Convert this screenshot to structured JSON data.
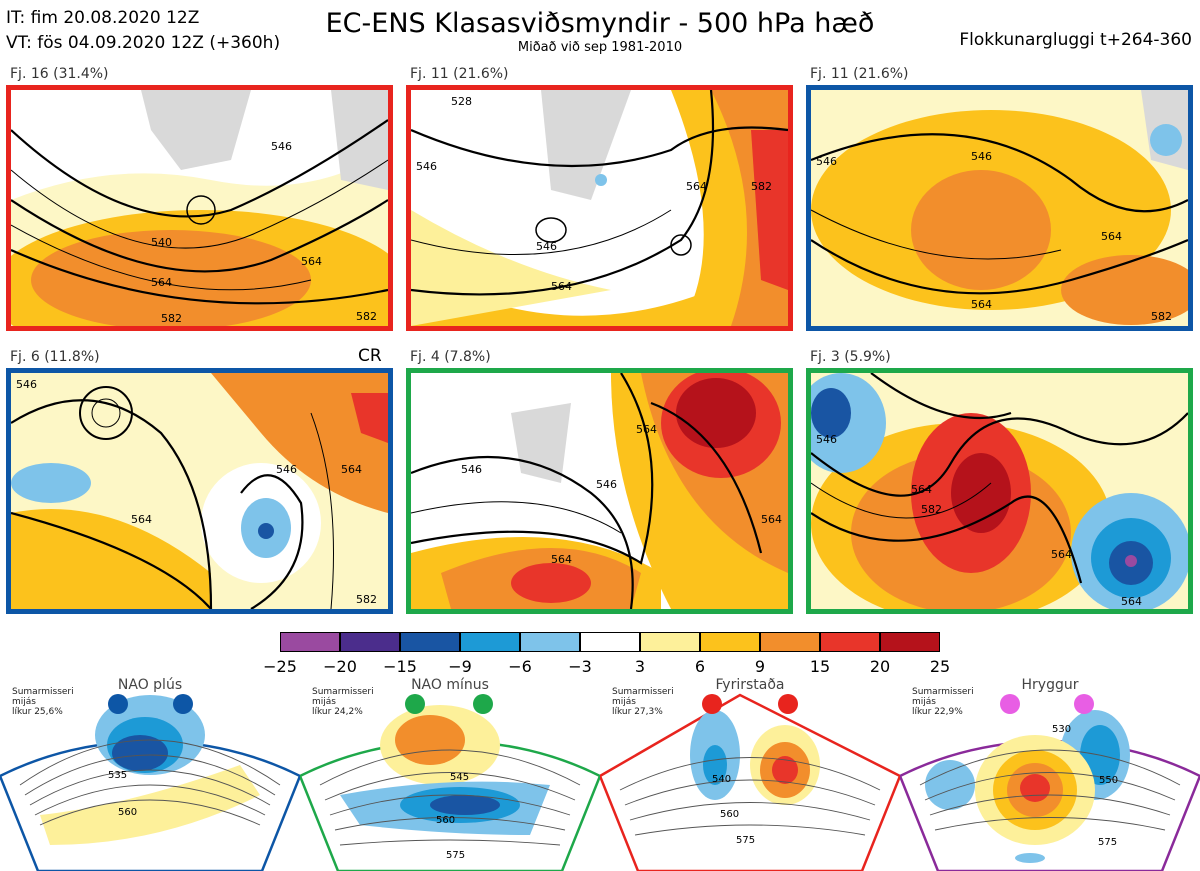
{
  "header": {
    "it_line": "IT: fim 20.08.2020 12Z",
    "vt_line": "VT: fös 04.09.2020 12Z  (+360h)",
    "title": "EC-ENS Klasasviðsmyndir - 500 hPa hæð",
    "subtitle": "Miðað við sep 1981-2010",
    "window_label": "Flokkunargluggi t+264-360"
  },
  "panels": [
    {
      "label": "Fj. 16 (31.4%)",
      "border_color": "#e8241e",
      "contours": [
        "546",
        "540",
        "564",
        "564",
        "582",
        "582"
      ]
    },
    {
      "label": "Fj. 11 (21.6%)",
      "border_color": "#e8241e",
      "contours": [
        "528",
        "546",
        "546",
        "564",
        "564",
        "582"
      ]
    },
    {
      "label": "Fj. 11 (21.6%)",
      "border_color": "#0d56a6",
      "contours": [
        "546",
        "546",
        "564",
        "564",
        "582"
      ]
    },
    {
      "label": "Fj. 6 (11.8%)",
      "border_color": "#0d56a6",
      "tag": "CR",
      "contours": [
        "546",
        "546",
        "564",
        "564",
        "582"
      ]
    },
    {
      "label": "Fj. 4 (7.8%)",
      "border_color": "#1ea84a",
      "contours": [
        "546",
        "546",
        "564",
        "564",
        "564"
      ]
    },
    {
      "label": "Fj. 3 (5.9%)",
      "border_color": "#1ea84a",
      "contours": [
        "546",
        "564",
        "582",
        "564",
        "564"
      ]
    }
  ],
  "colorbar": {
    "colors": [
      "#9a4aa0",
      "#4b2d8c",
      "#1955a3",
      "#1d9ad6",
      "#7ec3ea",
      "#ffffff",
      "#fdf09a",
      "#fcc21c",
      "#f28e2c",
      "#e8352a",
      "#b5121b"
    ],
    "ticks": [
      "−25",
      "−20",
      "−15",
      "−9",
      "−6",
      "−3",
      "3",
      "6",
      "9",
      "15",
      "20",
      "25"
    ]
  },
  "regimes": [
    {
      "name": "NAO plús",
      "note_lines": [
        "Sumarmisseri",
        "mijás",
        "líkur 25,6%"
      ],
      "color": "#0d56a6",
      "contours": [
        "535",
        "560"
      ]
    },
    {
      "name": "NAO mínus",
      "note_lines": [
        "Sumarmisseri",
        "mijás",
        "líkur 24,2%"
      ],
      "color": "#1ea84a",
      "contours": [
        "545",
        "560",
        "575"
      ]
    },
    {
      "name": "Fyrirstaða",
      "note_lines": [
        "Sumarmisseri",
        "mijás",
        "líkur 27,3%"
      ],
      "color": "#e8241e",
      "contours": [
        "540",
        "560",
        "575"
      ]
    },
    {
      "name": "Hryggur",
      "note_lines": [
        "Sumarmisseri",
        "mijás",
        "líkur 22,9%"
      ],
      "color": "#e85ee4",
      "border_color": "#8a2a9a",
      "contours": [
        "530",
        "550",
        "575"
      ]
    }
  ]
}
